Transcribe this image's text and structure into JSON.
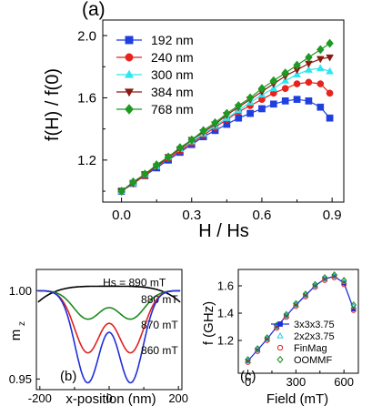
{
  "chart_data": [
    {
      "panel_label": "(a)",
      "type": "line",
      "xlabel": "H / Hs",
      "ylabel": "f(H) / f(0)",
      "xlim": [
        -0.08,
        0.95
      ],
      "ylim": [
        0.93,
        2.1
      ],
      "xticks": [
        "0.0",
        "0.3",
        "0.6",
        "0.9"
      ],
      "yticks": [
        "1.2",
        "1.6",
        "2.0"
      ],
      "grid": false,
      "legend": "top-left",
      "series": [
        {
          "name": "192 nm",
          "color": "#1f3fe0",
          "marker": "square",
          "x": [
            0,
            0.05,
            0.1,
            0.15,
            0.2,
            0.25,
            0.3,
            0.35,
            0.4,
            0.45,
            0.5,
            0.55,
            0.6,
            0.65,
            0.7,
            0.75,
            0.8,
            0.85,
            0.89
          ],
          "y": [
            1.0,
            1.05,
            1.1,
            1.15,
            1.2,
            1.25,
            1.3,
            1.35,
            1.39,
            1.43,
            1.47,
            1.5,
            1.53,
            1.56,
            1.58,
            1.59,
            1.58,
            1.54,
            1.47
          ]
        },
        {
          "name": "240 nm",
          "color": "#e8221e",
          "marker": "circle",
          "x": [
            0,
            0.05,
            0.1,
            0.15,
            0.2,
            0.25,
            0.3,
            0.35,
            0.4,
            0.45,
            0.5,
            0.55,
            0.6,
            0.65,
            0.7,
            0.75,
            0.8,
            0.85,
            0.89
          ],
          "y": [
            1.0,
            1.05,
            1.1,
            1.16,
            1.21,
            1.26,
            1.31,
            1.36,
            1.41,
            1.46,
            1.51,
            1.55,
            1.59,
            1.63,
            1.66,
            1.69,
            1.7,
            1.69,
            1.63
          ]
        },
        {
          "name": "300 nm",
          "color": "#2ee6f0",
          "marker": "triangle",
          "x": [
            0,
            0.05,
            0.1,
            0.15,
            0.2,
            0.25,
            0.3,
            0.35,
            0.4,
            0.45,
            0.5,
            0.55,
            0.6,
            0.65,
            0.7,
            0.75,
            0.8,
            0.85,
            0.89
          ],
          "y": [
            1.0,
            1.05,
            1.11,
            1.16,
            1.22,
            1.27,
            1.32,
            1.37,
            1.42,
            1.47,
            1.52,
            1.57,
            1.62,
            1.66,
            1.71,
            1.75,
            1.78,
            1.79,
            1.77
          ]
        },
        {
          "name": "384 nm",
          "color": "#8b1a10",
          "marker": "triangle-down",
          "x": [
            0,
            0.05,
            0.1,
            0.15,
            0.2,
            0.25,
            0.3,
            0.35,
            0.4,
            0.45,
            0.5,
            0.55,
            0.6,
            0.65,
            0.7,
            0.75,
            0.8,
            0.85,
            0.89
          ],
          "y": [
            1.0,
            1.05,
            1.11,
            1.16,
            1.22,
            1.27,
            1.33,
            1.38,
            1.43,
            1.49,
            1.54,
            1.59,
            1.64,
            1.69,
            1.74,
            1.78,
            1.82,
            1.85,
            1.86
          ]
        },
        {
          "name": "768 nm",
          "color": "#1e9a22",
          "marker": "diamond",
          "x": [
            0,
            0.05,
            0.1,
            0.15,
            0.2,
            0.25,
            0.3,
            0.35,
            0.4,
            0.45,
            0.5,
            0.55,
            0.6,
            0.65,
            0.7,
            0.75,
            0.8,
            0.85,
            0.89
          ],
          "y": [
            1.0,
            1.06,
            1.11,
            1.17,
            1.22,
            1.28,
            1.33,
            1.39,
            1.44,
            1.5,
            1.55,
            1.6,
            1.66,
            1.71,
            1.76,
            1.81,
            1.86,
            1.91,
            1.95
          ]
        }
      ]
    },
    {
      "panel_label": "(b)",
      "type": "line",
      "xlabel": "x-position (nm)",
      "ylabel": "m",
      "ylabel_sub": "z",
      "xlim": [
        -210,
        210
      ],
      "ylim": [
        0.944,
        1.012
      ],
      "xticks": [
        "-200",
        "0",
        "200"
      ],
      "yticks": [
        "0.95",
        "1.00"
      ],
      "grid": false,
      "series": [
        {
          "name": "Hs = 890 mT",
          "color": "#000000",
          "depth": 0.002,
          "width": 190,
          "label_x": -18,
          "label_y": 1.0025
        },
        {
          "name": "880 mT",
          "color": "#1e8a1e",
          "depth": 0.016,
          "width": 40,
          "label_x": 92,
          "label_y": 0.993
        },
        {
          "name": "870 mT",
          "color": "#e02020",
          "depth": 0.035,
          "width": 38,
          "label_x": 92,
          "label_y": 0.9785
        },
        {
          "name": "860 mT",
          "color": "#1f2fd8",
          "depth": 0.052,
          "width": 36,
          "label_x": 92,
          "label_y": 0.964
        }
      ]
    },
    {
      "panel_label": "(c)",
      "type": "line",
      "xlabel": "Field (mT)",
      "ylabel": "f (GHz)",
      "xlim": [
        -60,
        690
      ],
      "ylim": [
        0.96,
        1.72
      ],
      "xticks": [
        "0",
        "300",
        "600"
      ],
      "yticks": [
        "1.2",
        "1.4",
        "1.6"
      ],
      "grid": false,
      "legend": "bottom-right",
      "series": [
        {
          "name": "3x3x3.75",
          "color": "#1f2fd8",
          "marker": "square-filled",
          "x": [
            0,
            60,
            120,
            180,
            240,
            300,
            360,
            420,
            480,
            540,
            600,
            660
          ],
          "y": [
            1.05,
            1.13,
            1.21,
            1.3,
            1.38,
            1.46,
            1.53,
            1.6,
            1.65,
            1.67,
            1.62,
            1.43
          ]
        },
        {
          "name": "2x2x3.75",
          "color": "#2ec8e0",
          "marker": "triangle-open",
          "x": [
            0,
            60,
            120,
            180,
            240,
            300,
            360,
            420,
            480,
            540,
            600,
            660
          ],
          "y": [
            1.05,
            1.13,
            1.21,
            1.3,
            1.38,
            1.46,
            1.53,
            1.6,
            1.65,
            1.67,
            1.63,
            1.45
          ]
        },
        {
          "name": "FinMag",
          "color": "#e02020",
          "marker": "circle-open",
          "x": [
            0,
            60,
            120,
            180,
            240,
            300,
            360,
            420,
            480,
            540,
            600,
            660
          ],
          "y": [
            1.04,
            1.12,
            1.2,
            1.29,
            1.37,
            1.45,
            1.52,
            1.59,
            1.64,
            1.66,
            1.61,
            1.42
          ]
        },
        {
          "name": "OOMMF",
          "color": "#1e8a1e",
          "marker": "diamond-open",
          "x": [
            0,
            60,
            120,
            180,
            240,
            300,
            360,
            420,
            480,
            540,
            600,
            660
          ],
          "y": [
            1.06,
            1.14,
            1.22,
            1.31,
            1.39,
            1.47,
            1.54,
            1.61,
            1.66,
            1.68,
            1.64,
            1.46
          ]
        }
      ]
    }
  ]
}
